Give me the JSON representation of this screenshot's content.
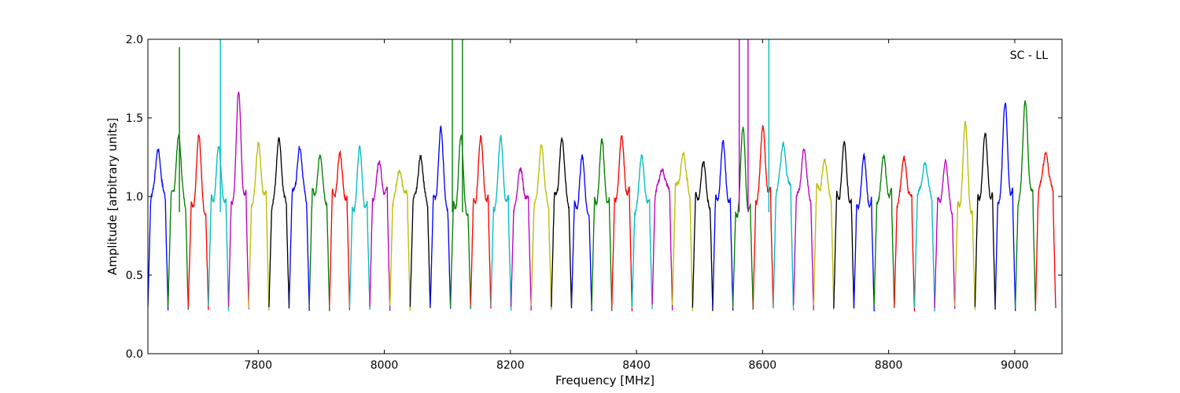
{
  "chart_data": {
    "type": "line",
    "title": "",
    "annotation": "SC - LL",
    "xlabel": "Frequency [MHz]",
    "ylabel": "Amplitude [arbitrary units]",
    "xlim": [
      7625,
      9075
    ],
    "ylim": [
      0.0,
      2.0
    ],
    "x_ticks": [
      7800,
      8000,
      8200,
      8400,
      8600,
      8800,
      9000
    ],
    "x_tick_labels": [
      "7800",
      "8000",
      "8200",
      "8400",
      "8600",
      "8800",
      "9000"
    ],
    "y_ticks": [
      0.0,
      0.5,
      1.0,
      1.5,
      2.0
    ],
    "y_tick_labels": [
      "0.0",
      "0.5",
      "1.0",
      "1.5",
      "2.0"
    ],
    "grid": false,
    "legend": "none",
    "color_cycle": [
      "#0000ff",
      "#008000",
      "#ff0000",
      "#00bfbf",
      "#bf00bf",
      "#bfbf00",
      "#000000"
    ],
    "background_trace_color": "#bbbbbb",
    "band_width_mhz": 32,
    "band_starts_mhz": [
      7625,
      7657,
      7689,
      7721,
      7753,
      7785,
      7817,
      7849,
      7881,
      7913,
      7945,
      7977,
      8009,
      8041,
      8073,
      8105,
      8137,
      8169,
      8201,
      8233,
      8265,
      8297,
      8329,
      8361,
      8393,
      8425,
      8457,
      8489,
      8521,
      8553,
      8585,
      8617,
      8649,
      8681,
      8713,
      8745,
      8777,
      8809,
      8841,
      8873,
      8905,
      8937,
      8969,
      9001,
      9033
    ],
    "band_peak_amplitudes": [
      1.35,
      1.41,
      1.37,
      1.27,
      1.63,
      1.34,
      1.42,
      1.35,
      1.25,
      1.23,
      1.27,
      1.21,
      1.2,
      1.3,
      1.44,
      1.35,
      1.33,
      1.36,
      1.2,
      1.38,
      1.39,
      1.23,
      1.31,
      1.35,
      1.27,
      1.22,
      1.3,
      1.2,
      1.3,
      1.4,
      1.44,
      1.38,
      1.34,
      1.22,
      1.3,
      1.21,
      1.24,
      1.28,
      1.26,
      1.23,
      1.44,
      1.35,
      1.57,
      1.63,
      1.33
    ],
    "spikes": [
      {
        "x": 7675,
        "y": 1.95,
        "series": "green"
      },
      {
        "x": 7740,
        "y": 2.0,
        "series": "cyan"
      },
      {
        "x": 8108,
        "y": 2.0,
        "series": "green"
      },
      {
        "x": 8124,
        "y": 2.0,
        "series": "green"
      },
      {
        "x": 8563,
        "y": 2.0,
        "series": "magenta"
      },
      {
        "x": 8577,
        "y": 2.0,
        "series": "magenta"
      },
      {
        "x": 8610,
        "y": 2.0,
        "series": "cyan"
      }
    ]
  }
}
